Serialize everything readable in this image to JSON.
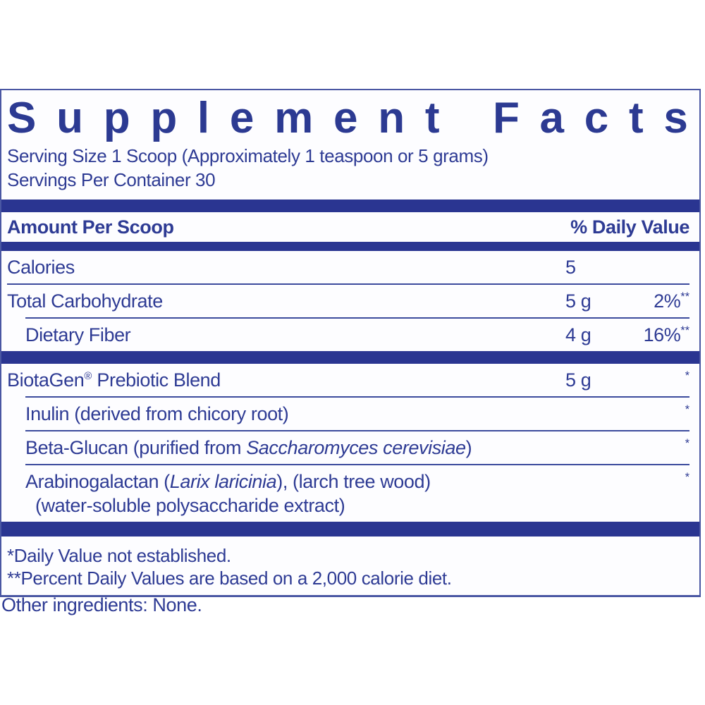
{
  "colors": {
    "navy_text": "#2e3b94",
    "title_navy": "#2c3a92",
    "bar_navy": "#2a3591",
    "rule_navy": "#3c4b9d",
    "border_navy": "#4a57a3",
    "panel_bg": "#fdfdff",
    "page_bg": "#ffffff"
  },
  "panel": {
    "title": "Supplement Facts",
    "serving_size": "Serving Size 1 Scoop (Approximately 1 teaspoon or 5 grams)",
    "servings_per_container": "Servings Per Container 30",
    "columns": {
      "left": "Amount Per Scoop",
      "right": "% Daily Value"
    },
    "rows": [
      {
        "name_parts": [
          {
            "text": "Calories"
          }
        ],
        "indent": false,
        "separator_above": "none",
        "amount": "5",
        "dv": null
      },
      {
        "name_parts": [
          {
            "text": "Total Carbohydrate"
          }
        ],
        "indent": false,
        "separator_above": "thin",
        "amount": "5 g",
        "dv": {
          "text": "2%",
          "sup": "**"
        }
      },
      {
        "name_parts": [
          {
            "text": "Dietary Fiber"
          }
        ],
        "indent": true,
        "separator_above": "thin-indent",
        "amount": "4 g",
        "dv": {
          "text": "16%",
          "sup": "**"
        }
      },
      {
        "name_parts": [
          {
            "text": "BiotaGen"
          },
          {
            "text": "®",
            "sup": true
          },
          {
            "text": " Prebiotic Blend"
          }
        ],
        "indent": false,
        "separator_above": "bar",
        "amount": "5 g",
        "dv": {
          "text": "",
          "sup": "*"
        }
      },
      {
        "name_parts": [
          {
            "text": "Inulin (derived from chicory root)"
          }
        ],
        "indent": true,
        "separator_above": "thin-indent",
        "amount": "",
        "dv": {
          "text": "",
          "sup": "*"
        }
      },
      {
        "name_parts": [
          {
            "text": "Beta-Glucan (purified from "
          },
          {
            "text": "Saccharomyces cerevisiae",
            "italic": true
          },
          {
            "text": ")"
          }
        ],
        "indent": true,
        "separator_above": "thin-indent",
        "amount": "",
        "dv": {
          "text": "",
          "sup": "*"
        }
      },
      {
        "name_parts": [
          {
            "text": "Arabinogalactan ("
          },
          {
            "text": "Larix laricinia",
            "italic": true
          },
          {
            "text": "), (larch tree wood)"
          }
        ],
        "line2": "(water-soluble polysaccharide extract)",
        "indent": true,
        "separator_above": "thin-indent",
        "amount": "",
        "dv": {
          "text": "",
          "sup": "*"
        }
      }
    ],
    "footnotes": [
      "*Daily Value not established.",
      "**Percent Daily Values are based on a 2,000 calorie diet."
    ]
  },
  "other_ingredients": "Other ingredients: None."
}
